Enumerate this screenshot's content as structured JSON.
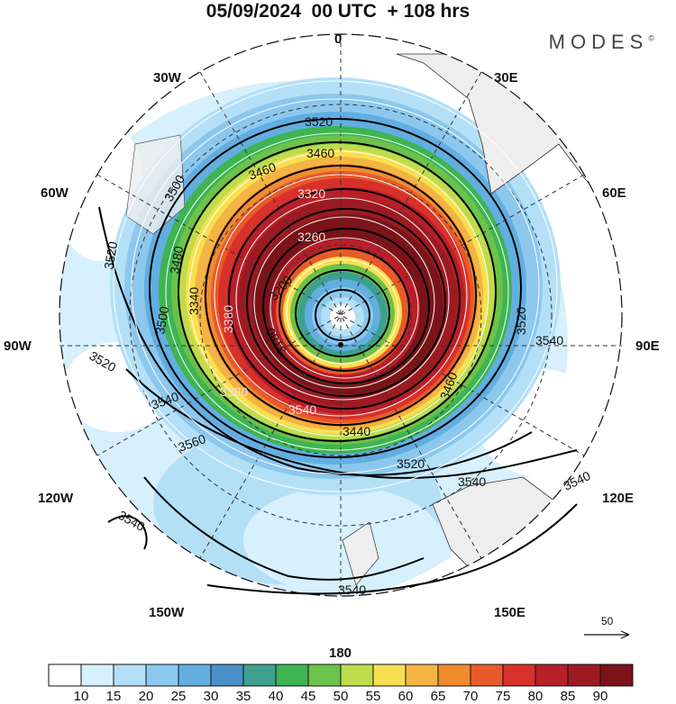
{
  "title": "05/09/2024  00 UTC  + 108 hrs",
  "brand": "MODES",
  "brand_mark": "©",
  "longitude_labels": {
    "lon0": "0",
    "lon30e": "30E",
    "lon60e": "60E",
    "lon90e": "90E",
    "lon120e": "120E",
    "lon150e": "150E",
    "lon180": "180",
    "lon150w": "150W",
    "lon120w": "120W",
    "lon90w": "90W",
    "lon60w": "60W",
    "lon30w": "30W"
  },
  "contour_labels": {
    "c1": "3520",
    "c2": "3460",
    "c3": "3460",
    "c4": "3500",
    "c5": "3480",
    "c6": "3520",
    "c7": "3500",
    "c8": "3520",
    "c9": "3540",
    "c10": "3560",
    "c11": "3540",
    "c12": "3540",
    "c13": "3520",
    "c14": "3540",
    "c15": "3540",
    "c16": "3520",
    "c17": "3540",
    "c18": "3440",
    "c19": "3460",
    "c20": "3320",
    "c21": "3260",
    "c22": "3200",
    "c23": "3180",
    "c24": "3380",
    "c25": "3340",
    "c26": "3380",
    "c27": "3540"
  },
  "colorbar": {
    "labels": [
      "10",
      "15",
      "20",
      "25",
      "30",
      "35",
      "40",
      "45",
      "50",
      "55",
      "60",
      "65",
      "70",
      "75",
      "80",
      "85",
      "90"
    ],
    "colors": [
      "#ffffff",
      "#d7f0fd",
      "#b4e0f7",
      "#8cc8ee",
      "#62aee0",
      "#4a90c8",
      "#3ea18f",
      "#3eb452",
      "#6cc24a",
      "#bfdc4c",
      "#f7e050",
      "#f4b443",
      "#ef8c30",
      "#e85a2a",
      "#d8302a",
      "#b81f28",
      "#9c1b22",
      "#7a1418"
    ]
  },
  "reference_vector": "50"
}
